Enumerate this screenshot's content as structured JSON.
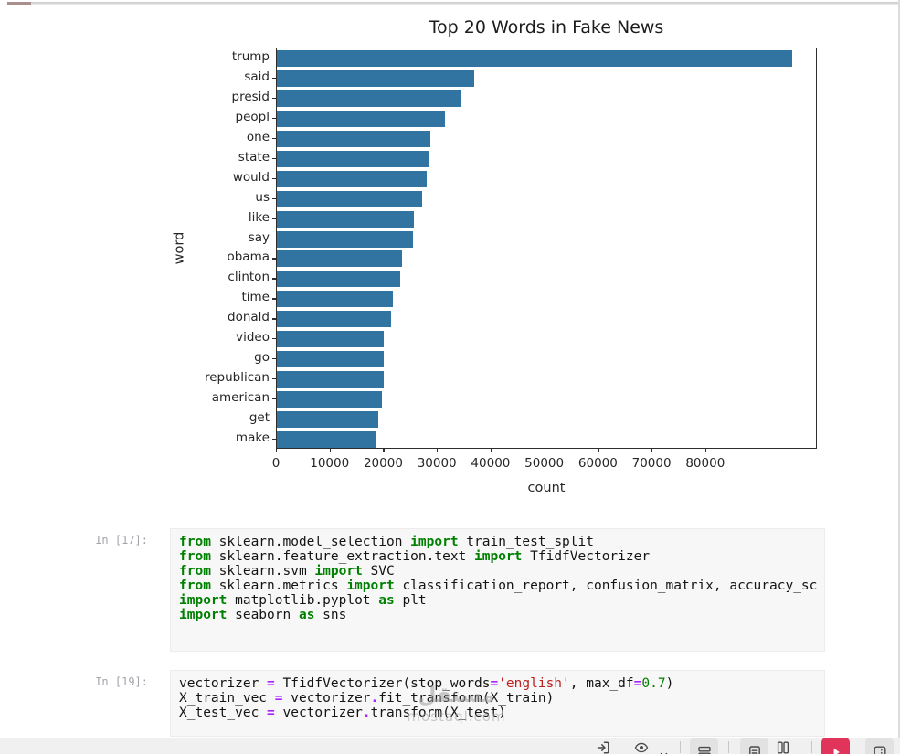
{
  "chart_data": {
    "type": "bar",
    "orientation": "horizontal",
    "title": "Top 20 Words in Fake News",
    "xlabel": "count",
    "ylabel": "word",
    "categories": [
      "trump",
      "said",
      "presid",
      "peopl",
      "one",
      "state",
      "would",
      "us",
      "like",
      "say",
      "obama",
      "clinton",
      "time",
      "donald",
      "video",
      "go",
      "republican",
      "american",
      "get",
      "make"
    ],
    "values": [
      96000,
      36800,
      34400,
      31400,
      28600,
      28400,
      27900,
      27000,
      25600,
      25300,
      23400,
      23000,
      21700,
      21200,
      20000,
      19900,
      19900,
      19500,
      18900,
      18500
    ],
    "xlim": [
      0,
      100800
    ],
    "xticks": [
      0,
      10000,
      20000,
      30000,
      40000,
      50000,
      60000,
      70000,
      80000
    ],
    "bar_color": "#3274a1",
    "grid": false,
    "legend": null
  },
  "notebook": {
    "cells": [
      {
        "prompt": "In [17]:",
        "lines": [
          [
            {
              "t": "from",
              "c": "k"
            },
            {
              "t": " sklearn.model_selection ",
              "c": "p"
            },
            {
              "t": "import",
              "c": "k"
            },
            {
              "t": " train_test_split",
              "c": "p"
            }
          ],
          [
            {
              "t": "from",
              "c": "k"
            },
            {
              "t": " sklearn.feature_extraction.text ",
              "c": "p"
            },
            {
              "t": "import",
              "c": "k"
            },
            {
              "t": " TfidfVectorizer",
              "c": "p"
            }
          ],
          [
            {
              "t": "from",
              "c": "k"
            },
            {
              "t": " sklearn.svm ",
              "c": "p"
            },
            {
              "t": "import",
              "c": "k"
            },
            {
              "t": " SVC",
              "c": "p"
            }
          ],
          [
            {
              "t": "from",
              "c": "k"
            },
            {
              "t": " sklearn.metrics ",
              "c": "p"
            },
            {
              "t": "import",
              "c": "k"
            },
            {
              "t": " classification_report, confusion_matrix, accuracy_sc",
              "c": "p"
            }
          ],
          [
            {
              "t": "import",
              "c": "k"
            },
            {
              "t": " matplotlib.pyplot ",
              "c": "p"
            },
            {
              "t": "as",
              "c": "k"
            },
            {
              "t": " plt",
              "c": "p"
            }
          ],
          [
            {
              "t": "import",
              "c": "k"
            },
            {
              "t": " seaborn ",
              "c": "p"
            },
            {
              "t": "as",
              "c": "k"
            },
            {
              "t": " sns",
              "c": "p"
            }
          ]
        ]
      },
      {
        "prompt": "In [19]:",
        "lines": [
          [
            {
              "t": "vectorizer ",
              "c": "p"
            },
            {
              "t": "=",
              "c": "o"
            },
            {
              "t": " TfidfVectorizer(stop_words",
              "c": "p"
            },
            {
              "t": "=",
              "c": "o"
            },
            {
              "t": "'english'",
              "c": "s"
            },
            {
              "t": ", max_df",
              "c": "p"
            },
            {
              "t": "=",
              "c": "o"
            },
            {
              "t": "0.7",
              "c": "n"
            },
            {
              "t": ")",
              "c": "p"
            }
          ],
          [
            {
              "t": "X_train_vec ",
              "c": "p"
            },
            {
              "t": "=",
              "c": "o"
            },
            {
              "t": " vectorizer",
              "c": "p"
            },
            {
              "t": ".",
              "c": "o"
            },
            {
              "t": "fit_transform(X_train)",
              "c": "p"
            }
          ],
          [
            {
              "t": "X_test_vec ",
              "c": "p"
            },
            {
              "t": "=",
              "c": "o"
            },
            {
              "t": " vectorizer",
              "c": "p"
            },
            {
              "t": ".",
              "c": "o"
            },
            {
              "t": "transform(X_test)",
              "c": "p"
            }
          ]
        ]
      }
    ]
  },
  "watermark": {
    "logo_text": "مستقل",
    "domain": "mostaql.com"
  },
  "toolbar": {
    "accent_color": "#e0345a",
    "button_bg": "#e2e2e2",
    "icon_color": "#4a4a4a",
    "items": [
      {
        "kind": "icon",
        "name": "export",
        "icon": "signin"
      },
      {
        "kind": "icon",
        "name": "visibility",
        "icon": "eye",
        "dropdown": true
      },
      {
        "kind": "sep"
      },
      {
        "kind": "button",
        "name": "split-rows",
        "icon": "rows"
      },
      {
        "kind": "sep"
      },
      {
        "kind": "button",
        "name": "notes",
        "icon": "doc"
      },
      {
        "kind": "icon",
        "name": "columns",
        "icon": "columns"
      },
      {
        "kind": "sep"
      },
      {
        "kind": "button-accent",
        "name": "run",
        "icon": "play"
      },
      {
        "kind": "button",
        "name": "panel",
        "icon": "panel"
      }
    ]
  }
}
